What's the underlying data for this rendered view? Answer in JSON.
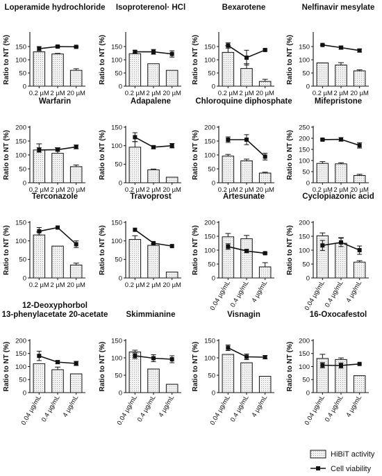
{
  "legend": {
    "hibit_label": "HiBiT activity",
    "viability_label": "Cell viability"
  },
  "chart_data": [
    {
      "type": "bar",
      "title": [
        "Loperamide hydrochloride"
      ],
      "ylabel": "Ratio to NT (%)",
      "ylim": [
        0,
        200
      ],
      "yticks": [
        0,
        50,
        100,
        150
      ],
      "categories": [
        "0.2 µM",
        "2 µM",
        "20 µM"
      ],
      "rotate": false,
      "series": [
        {
          "name": "HiBiT activity",
          "kind": "bar",
          "values": [
            130,
            122,
            60
          ],
          "err": [
            0,
            2,
            6
          ]
        },
        {
          "name": "Cell viability",
          "kind": "line",
          "values": [
            142,
            150,
            149
          ],
          "err": [
            8,
            3,
            2
          ]
        }
      ]
    },
    {
      "type": "bar",
      "title": [
        "Isoproterenol· HCl"
      ],
      "ylabel": "Ratio to NT (%)",
      "ylim": [
        0,
        200
      ],
      "yticks": [
        0,
        50,
        100,
        150
      ],
      "categories": [
        "0.2 µM",
        "2 µM",
        "20 µM"
      ],
      "rotate": false,
      "series": [
        {
          "name": "HiBiT activity",
          "kind": "bar",
          "values": [
            123,
            85,
            60
          ],
          "err": [
            0,
            0,
            0
          ]
        },
        {
          "name": "Cell viability",
          "kind": "line",
          "values": [
            130,
            130,
            122
          ],
          "err": [
            5,
            9,
            12
          ]
        }
      ]
    },
    {
      "type": "bar",
      "title": [
        "Bexarotene"
      ],
      "ylabel": "Ratio to NT (%)",
      "ylim": [
        0,
        200
      ],
      "yticks": [
        0,
        50,
        100,
        150
      ],
      "categories": [
        "0.2 µM",
        "2 µM",
        "20 µM"
      ],
      "rotate": false,
      "series": [
        {
          "name": "HiBiT activity",
          "kind": "bar",
          "values": [
            128,
            67,
            18
          ],
          "err": [
            25,
            18,
            8
          ]
        },
        {
          "name": "Cell viability",
          "kind": "line",
          "values": [
            154,
            108,
            137
          ],
          "err": [
            10,
            28,
            3
          ]
        }
      ]
    },
    {
      "type": "bar",
      "title": [
        "Nelfinavir mesylate"
      ],
      "ylabel": "Ratio to NT (%)",
      "ylim": [
        0,
        200
      ],
      "yticks": [
        0,
        50,
        100,
        150
      ],
      "categories": [
        "0.2 µM",
        "2 µM",
        "20 µM"
      ],
      "rotate": false,
      "series": [
        {
          "name": "HiBiT activity",
          "kind": "bar",
          "values": [
            88,
            80,
            58
          ],
          "err": [
            0,
            9,
            4
          ]
        },
        {
          "name": "Cell viability",
          "kind": "line",
          "values": [
            156,
            146,
            135
          ],
          "err": [
            2,
            6,
            6
          ]
        }
      ]
    },
    {
      "type": "bar",
      "title": [
        "Warfarin"
      ],
      "ylabel": "Ratio to NT (%)",
      "ylim": [
        0,
        200
      ],
      "yticks": [
        0,
        50,
        100,
        150,
        200
      ],
      "categories": [
        "0.2 µM",
        "2 µM",
        "20 µM"
      ],
      "rotate": false,
      "series": [
        {
          "name": "HiBiT activity",
          "kind": "bar",
          "values": [
            118,
            106,
            58
          ],
          "err": [
            22,
            20,
            6
          ]
        },
        {
          "name": "Cell viability",
          "kind": "line",
          "values": [
            118,
            119,
            129
          ],
          "err": [
            8,
            5,
            7
          ]
        }
      ]
    },
    {
      "type": "bar",
      "title": [
        "Adapalene"
      ],
      "ylabel": "Ratio to NT (%)",
      "ylim": [
        0,
        150
      ],
      "yticks": [
        0,
        50,
        100,
        150
      ],
      "categories": [
        "0.2 µM",
        "2 µM",
        "20 µM"
      ],
      "rotate": false,
      "series": [
        {
          "name": "HiBiT activity",
          "kind": "bar",
          "values": [
            96,
            35,
            15
          ],
          "err": [
            15,
            2,
            0
          ]
        },
        {
          "name": "Cell viability",
          "kind": "line",
          "values": [
            123,
            96,
            100
          ],
          "err": [
            12,
            4,
            6
          ]
        }
      ]
    },
    {
      "type": "bar",
      "title": [
        "Chloroquine diphosphate"
      ],
      "ylabel": "Ratio to NT (%)",
      "ylim": [
        0,
        200
      ],
      "yticks": [
        0,
        50,
        100,
        150,
        200
      ],
      "categories": [
        "0.2 µM",
        "2 µM",
        "20 µM"
      ],
      "rotate": false,
      "series": [
        {
          "name": "HiBiT activity",
          "kind": "bar",
          "values": [
            96,
            79,
            35
          ],
          "err": [
            6,
            6,
            3
          ]
        },
        {
          "name": "Cell viability",
          "kind": "line",
          "values": [
            155,
            155,
            94
          ],
          "err": [
            10,
            18,
            12
          ]
        }
      ]
    },
    {
      "type": "bar",
      "title": [
        "Mifepristone"
      ],
      "ylabel": "Ratio to NT (%)",
      "ylim": [
        0,
        250
      ],
      "yticks": [
        0,
        50,
        100,
        150,
        200,
        250
      ],
      "categories": [
        "0.2 µM",
        "2 µM",
        "20 µM"
      ],
      "rotate": false,
      "series": [
        {
          "name": "HiBiT activity",
          "kind": "bar",
          "values": [
            87,
            85,
            33
          ],
          "err": [
            8,
            5,
            5
          ]
        },
        {
          "name": "Cell viability",
          "kind": "line",
          "values": [
            194,
            195,
            168
          ],
          "err": [
            3,
            8,
            12
          ]
        }
      ]
    },
    {
      "type": "bar",
      "title": [
        "Terconazole"
      ],
      "ylabel": "Ratio to NT (%)",
      "ylim": [
        0,
        150
      ],
      "yticks": [
        0,
        50,
        100,
        150
      ],
      "categories": [
        "0.2 µM",
        "2 µM",
        "20 µM"
      ],
      "rotate": false,
      "series": [
        {
          "name": "HiBiT activity",
          "kind": "bar",
          "values": [
            116,
            86,
            35
          ],
          "err": [
            8,
            0,
            5
          ]
        },
        {
          "name": "Cell viability",
          "kind": "line",
          "values": [
            126,
            136,
            91
          ],
          "err": [
            10,
            0,
            9
          ]
        }
      ]
    },
    {
      "type": "bar",
      "title": [
        "Travoprost"
      ],
      "ylabel": "Ratio to NT (%)",
      "ylim": [
        0,
        150
      ],
      "yticks": [
        0,
        50,
        100,
        150
      ],
      "categories": [
        "0.2 µM",
        "2 µM",
        "20 µM"
      ],
      "rotate": false,
      "series": [
        {
          "name": "HiBiT activity",
          "kind": "bar",
          "values": [
            104,
            88,
            16
          ],
          "err": [
            10,
            4,
            0
          ]
        },
        {
          "name": "Cell viability",
          "kind": "line",
          "values": [
            130,
            94,
            86
          ],
          "err": [
            0,
            0,
            0
          ]
        }
      ]
    },
    {
      "type": "bar",
      "title": [
        "Artesunate"
      ],
      "ylabel": "Ratio to NT (%)",
      "ylim": [
        0,
        200
      ],
      "yticks": [
        0,
        50,
        100,
        150,
        200
      ],
      "categories": [
        "0.04 µg/mL",
        "0.4 µg/mL",
        "4 µg/mL"
      ],
      "rotate": true,
      "series": [
        {
          "name": "HiBiT activity",
          "kind": "bar",
          "values": [
            148,
            141,
            40
          ],
          "err": [
            12,
            12,
            15
          ]
        },
        {
          "name": "Cell viability",
          "kind": "line",
          "values": [
            113,
            97,
            89
          ],
          "err": [
            10,
            6,
            3
          ]
        }
      ]
    },
    {
      "type": "bar",
      "title": [
        "Cyclopiazonic acid"
      ],
      "ylabel": "Ratio to NT (%)",
      "ylim": [
        0,
        200
      ],
      "yticks": [
        0,
        50,
        100,
        150,
        200
      ],
      "categories": [
        "0.04 µg/mL",
        "0.4 µg/mL",
        "4 µg/mL"
      ],
      "rotate": true,
      "series": [
        {
          "name": "HiBiT activity",
          "kind": "bar",
          "values": [
            152,
            125,
            57
          ],
          "err": [
            10,
            20,
            5
          ]
        },
        {
          "name": "Cell viability",
          "kind": "line",
          "values": [
            117,
            128,
            100
          ],
          "err": [
            18,
            15,
            15
          ]
        }
      ]
    },
    {
      "type": "bar",
      "title": [
        "12-Deoxyphorbol",
        "13-phenylacetate 20-acetate"
      ],
      "ylabel": "Ratio to NT (%)",
      "ylim": [
        0,
        200
      ],
      "yticks": [
        0,
        50,
        100,
        150,
        200
      ],
      "categories": [
        "0.04 µg/mL",
        "0.4 µg/mL",
        "4 µg/mL"
      ],
      "rotate": true,
      "series": [
        {
          "name": "HiBiT activity",
          "kind": "bar",
          "values": [
            111,
            88,
            72
          ],
          "err": [
            0,
            10,
            0
          ]
        },
        {
          "name": "Cell viability",
          "kind": "line",
          "values": [
            141,
            117,
            112
          ],
          "err": [
            18,
            6,
            8
          ]
        }
      ]
    },
    {
      "type": "bar",
      "title": [
        "Skimmianine"
      ],
      "ylabel": "Ratio to NT (%)",
      "ylim": [
        0,
        150
      ],
      "yticks": [
        0,
        50,
        100,
        150
      ],
      "categories": [
        "0.04 µg/mL",
        "0.4 µg/mL",
        "4 µg/mL"
      ],
      "rotate": true,
      "series": [
        {
          "name": "HiBiT activity",
          "kind": "bar",
          "values": [
            117,
            68,
            24
          ],
          "err": [
            5,
            0,
            0
          ]
        },
        {
          "name": "Cell viability",
          "kind": "line",
          "values": [
            106,
            99,
            96
          ],
          "err": [
            8,
            10,
            10
          ]
        }
      ]
    },
    {
      "type": "bar",
      "title": [
        "Visnagin"
      ],
      "ylabel": "Ratio to NT (%)",
      "ylim": [
        0,
        150
      ],
      "yticks": [
        0,
        50,
        100,
        150
      ],
      "categories": [
        "0.04 µg/mL",
        "0.4 µg/mL",
        "4 µg/mL"
      ],
      "rotate": true,
      "series": [
        {
          "name": "HiBiT activity",
          "kind": "bar",
          "values": [
            110,
            86,
            47
          ],
          "err": [
            0,
            0,
            0
          ]
        },
        {
          "name": "Cell viability",
          "kind": "line",
          "values": [
            129,
            103,
            102
          ],
          "err": [
            8,
            8,
            5
          ]
        }
      ]
    },
    {
      "type": "bar",
      "title": [
        "16-Oxocafestol"
      ],
      "ylabel": "Ratio to NT (%)",
      "ylim": [
        0,
        200
      ],
      "yticks": [
        0,
        50,
        100,
        150,
        200
      ],
      "categories": [
        "0.04 µg/mL",
        "0.4 µg/mL",
        "4 µg/mL"
      ],
      "rotate": true,
      "series": [
        {
          "name": "HiBiT activity",
          "kind": "bar",
          "values": [
            131,
            127,
            65
          ],
          "err": [
            16,
            6,
            0
          ]
        },
        {
          "name": "Cell viability",
          "kind": "line",
          "values": [
            105,
            104,
            110
          ],
          "err": [
            10,
            10,
            0
          ]
        }
      ]
    }
  ]
}
